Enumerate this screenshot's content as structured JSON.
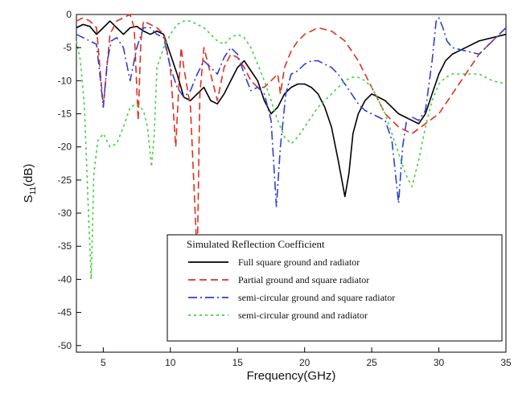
{
  "chart_data": {
    "type": "line",
    "title": "",
    "xlabel": "Frequency(GHz)",
    "ylabel": "S11(dB)",
    "ylabel_main": "S",
    "ylabel_sub": "11",
    "ylabel_unit": "(dB)",
    "xlim": [
      3,
      35
    ],
    "ylim": [
      -51,
      0
    ],
    "xticks": [
      5,
      10,
      15,
      20,
      25,
      30,
      35
    ],
    "yticks": [
      0,
      -5,
      -10,
      -15,
      -20,
      -25,
      -30,
      -35,
      -40,
      -45,
      -50
    ],
    "grid": false,
    "legend_placement": "bottom-right",
    "legend_title": "Simulated Reflection Coefficient",
    "series": [
      {
        "name": "Full square ground and radiator",
        "color": "#000000",
        "dash": "solid",
        "x": [
          3,
          3.5,
          4,
          4.5,
          5,
          5.5,
          6,
          6.5,
          7,
          7.5,
          8,
          8.5,
          9,
          9.5,
          10,
          10.5,
          11,
          11.5,
          12,
          12.5,
          13,
          13.5,
          14,
          14.5,
          15,
          15.5,
          16,
          16.5,
          17,
          17.5,
          18,
          18.5,
          19,
          19.5,
          20,
          20.5,
          21,
          21.5,
          22,
          22.5,
          23,
          23.3,
          23.6,
          24,
          24.5,
          25,
          25.5,
          26,
          26.5,
          27,
          27.5,
          28,
          28.5,
          29,
          29.5,
          30,
          30.5,
          31,
          32,
          33,
          34,
          35
        ],
        "y": [
          -2,
          -1.5,
          -1.8,
          -3,
          -2,
          -1,
          -2,
          -3,
          -2,
          -1.8,
          -2.5,
          -3,
          -2.5,
          -3,
          -6,
          -9,
          -12.5,
          -13,
          -12,
          -11,
          -13,
          -13.5,
          -12,
          -10,
          -8,
          -7,
          -8.5,
          -10,
          -13,
          -15,
          -14,
          -12,
          -11,
          -10.5,
          -10.5,
          -11,
          -12,
          -14,
          -17,
          -22,
          -27.5,
          -24,
          -18,
          -15,
          -13,
          -12,
          -12.5,
          -13,
          -14,
          -15,
          -15.5,
          -16,
          -16.5,
          -15,
          -12,
          -9,
          -7,
          -6,
          -5,
          -4,
          -3.5,
          -3
        ]
      },
      {
        "name": "Partial ground and square radiator",
        "color": "#e0301e",
        "dash": "9,5",
        "x": [
          3,
          3.5,
          4,
          4.5,
          5,
          5.5,
          6,
          6.5,
          7,
          7.3,
          7.6,
          7.8,
          8,
          8.5,
          9,
          9.5,
          10,
          10.4,
          10.6,
          10.8,
          11,
          11.5,
          11.8,
          12,
          12.2,
          12.5,
          13,
          13.5,
          14,
          14.5,
          15,
          15.5,
          16,
          16.5,
          17,
          17.5,
          18,
          18.2,
          18.5,
          19,
          19.5,
          20,
          20.5,
          21,
          22,
          23,
          24,
          25,
          26,
          27,
          28,
          29,
          30,
          31,
          32,
          33,
          34,
          35
        ],
        "y": [
          -1,
          -0.5,
          -1,
          -2,
          -14,
          -3,
          -1,
          -0.5,
          0,
          -2,
          -16,
          -4,
          -1,
          -1.5,
          -2,
          -3,
          -8,
          -20,
          -12,
          -5,
          -8,
          -14,
          -28,
          -37,
          -12,
          -5,
          -9,
          -13,
          -8,
          -6,
          -6.5,
          -8,
          -10,
          -11,
          -11,
          -10,
          -9,
          -12,
          -8,
          -5.5,
          -4,
          -3,
          -2.5,
          -2,
          -2.5,
          -4,
          -7,
          -11,
          -15,
          -17,
          -18,
          -16.5,
          -15,
          -12,
          -9,
          -6,
          -4,
          -2
        ]
      },
      {
        "name": "semi-circular ground and square radiator",
        "color": "#2f3fd6",
        "dash": "11,4,2,4",
        "x": [
          3,
          3.5,
          4,
          4.5,
          4.8,
          5,
          5.3,
          5.6,
          6,
          6.5,
          7,
          7.5,
          8,
          8.5,
          9,
          9.5,
          10,
          10.5,
          11,
          11.5,
          12,
          12.5,
          13,
          13.5,
          14,
          14.5,
          15,
          15.5,
          16,
          16.5,
          17,
          17.5,
          17.9,
          18.2,
          18.6,
          19,
          19.5,
          20,
          20.5,
          21,
          21.5,
          22,
          22.5,
          23,
          23.5,
          24,
          24.5,
          25,
          25.5,
          26,
          26.5,
          27,
          27.3,
          27.6,
          28,
          28.5,
          29,
          29.5,
          29.8,
          30,
          30.3,
          30.6,
          31,
          32,
          33,
          34,
          35
        ],
        "y": [
          -3,
          -3.5,
          -4,
          -4.5,
          -10,
          -14,
          -7,
          -4,
          -3.5,
          -5,
          -10,
          -5,
          -2,
          -2,
          -3,
          -3.5,
          -8,
          -11,
          -12.5,
          -11.5,
          -9,
          -7,
          -8,
          -9,
          -6.5,
          -5,
          -6,
          -9,
          -11.5,
          -11,
          -12,
          -16,
          -29,
          -20,
          -12,
          -9,
          -8.5,
          -7.5,
          -7,
          -7,
          -7.5,
          -8,
          -9,
          -10.5,
          -12,
          -13.5,
          -14.5,
          -15,
          -15.5,
          -16,
          -19,
          -28.5,
          -20,
          -16,
          -15.5,
          -16,
          -14.5,
          -7,
          -1,
          -0.5,
          -2,
          -4,
          -5,
          -5.5,
          -6,
          -4,
          -2
        ]
      },
      {
        "name": "semi-circular ground and radiator",
        "color": "#3dd23d",
        "dash": "3,4",
        "x": [
          3,
          3.3,
          3.6,
          3.9,
          4.1,
          4.3,
          4.6,
          5,
          5.5,
          6,
          6.5,
          7,
          7.5,
          8,
          8.3,
          8.6,
          8.8,
          9,
          9.5,
          10,
          10.5,
          11,
          11.5,
          12,
          12.5,
          13,
          13.5,
          14,
          14.5,
          15,
          15.5,
          16,
          16.5,
          17,
          17.5,
          18,
          18.5,
          19,
          19.5,
          20,
          20.5,
          21,
          21.5,
          22,
          22.5,
          23,
          23.5,
          24,
          24.5,
          25,
          25.5,
          26,
          26.5,
          27,
          27.5,
          28,
          28.5,
          29,
          29.5,
          30,
          30.5,
          31,
          32,
          33,
          34,
          35
        ],
        "y": [
          -4,
          -7,
          -14,
          -30,
          -40,
          -24,
          -19,
          -18,
          -20,
          -19.5,
          -17,
          -14,
          -13.5,
          -14.5,
          -17,
          -23,
          -18,
          -8,
          -5,
          -3,
          -1.5,
          -1,
          -1,
          -1.5,
          -2,
          -3,
          -4,
          -4.5,
          -3.5,
          -3,
          -3.5,
          -5,
          -7.5,
          -10,
          -13,
          -16,
          -18.5,
          -19.5,
          -18.5,
          -17,
          -15.5,
          -14,
          -13,
          -12,
          -11,
          -10,
          -9.5,
          -9.5,
          -10,
          -11,
          -13,
          -15,
          -18,
          -21,
          -24,
          -26,
          -22,
          -17,
          -13,
          -10.5,
          -9.5,
          -9,
          -9,
          -9,
          -10,
          -10.5
        ]
      }
    ]
  }
}
